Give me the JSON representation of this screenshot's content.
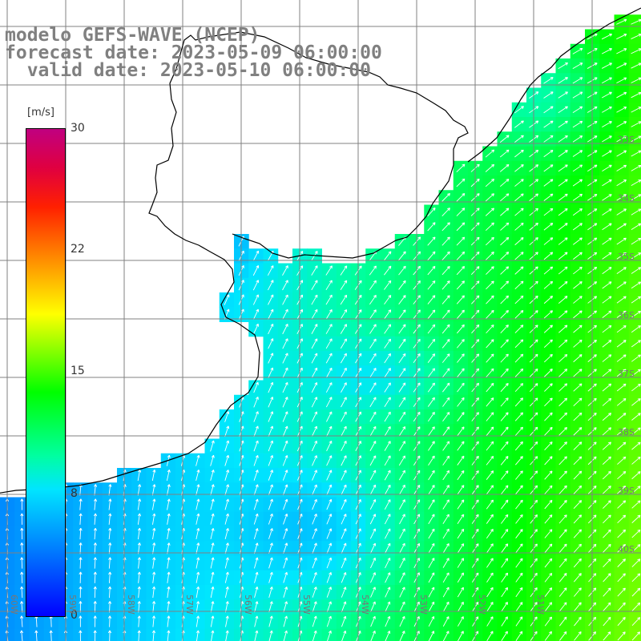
{
  "title": {
    "line1": "modelo GEFS-WAVE (NCEP)",
    "line2": "forecast date: 2023-05-09 06:00:00",
    "line3": "  valid date: 2023-05-10 06:00:00"
  },
  "colorbar": {
    "unit": "[m/s]",
    "ticks": [
      "30",
      "22",
      "15",
      "8",
      "0"
    ],
    "min": 0,
    "max": 30
  },
  "grid_labels": {
    "lon": [
      "60W",
      "59W",
      "58W",
      "57W",
      "56W",
      "55W",
      "54W",
      "53W",
      "52W",
      "51W"
    ],
    "lat": [
      "33S",
      "34S",
      "35S",
      "36S",
      "37S",
      "38S",
      "39S",
      "40S"
    ]
  },
  "colors": {
    "land": "#ffffff",
    "coast": "#000000",
    "grid": "#808080",
    "arrow": "#ffffff",
    "title": "#808080"
  }
}
